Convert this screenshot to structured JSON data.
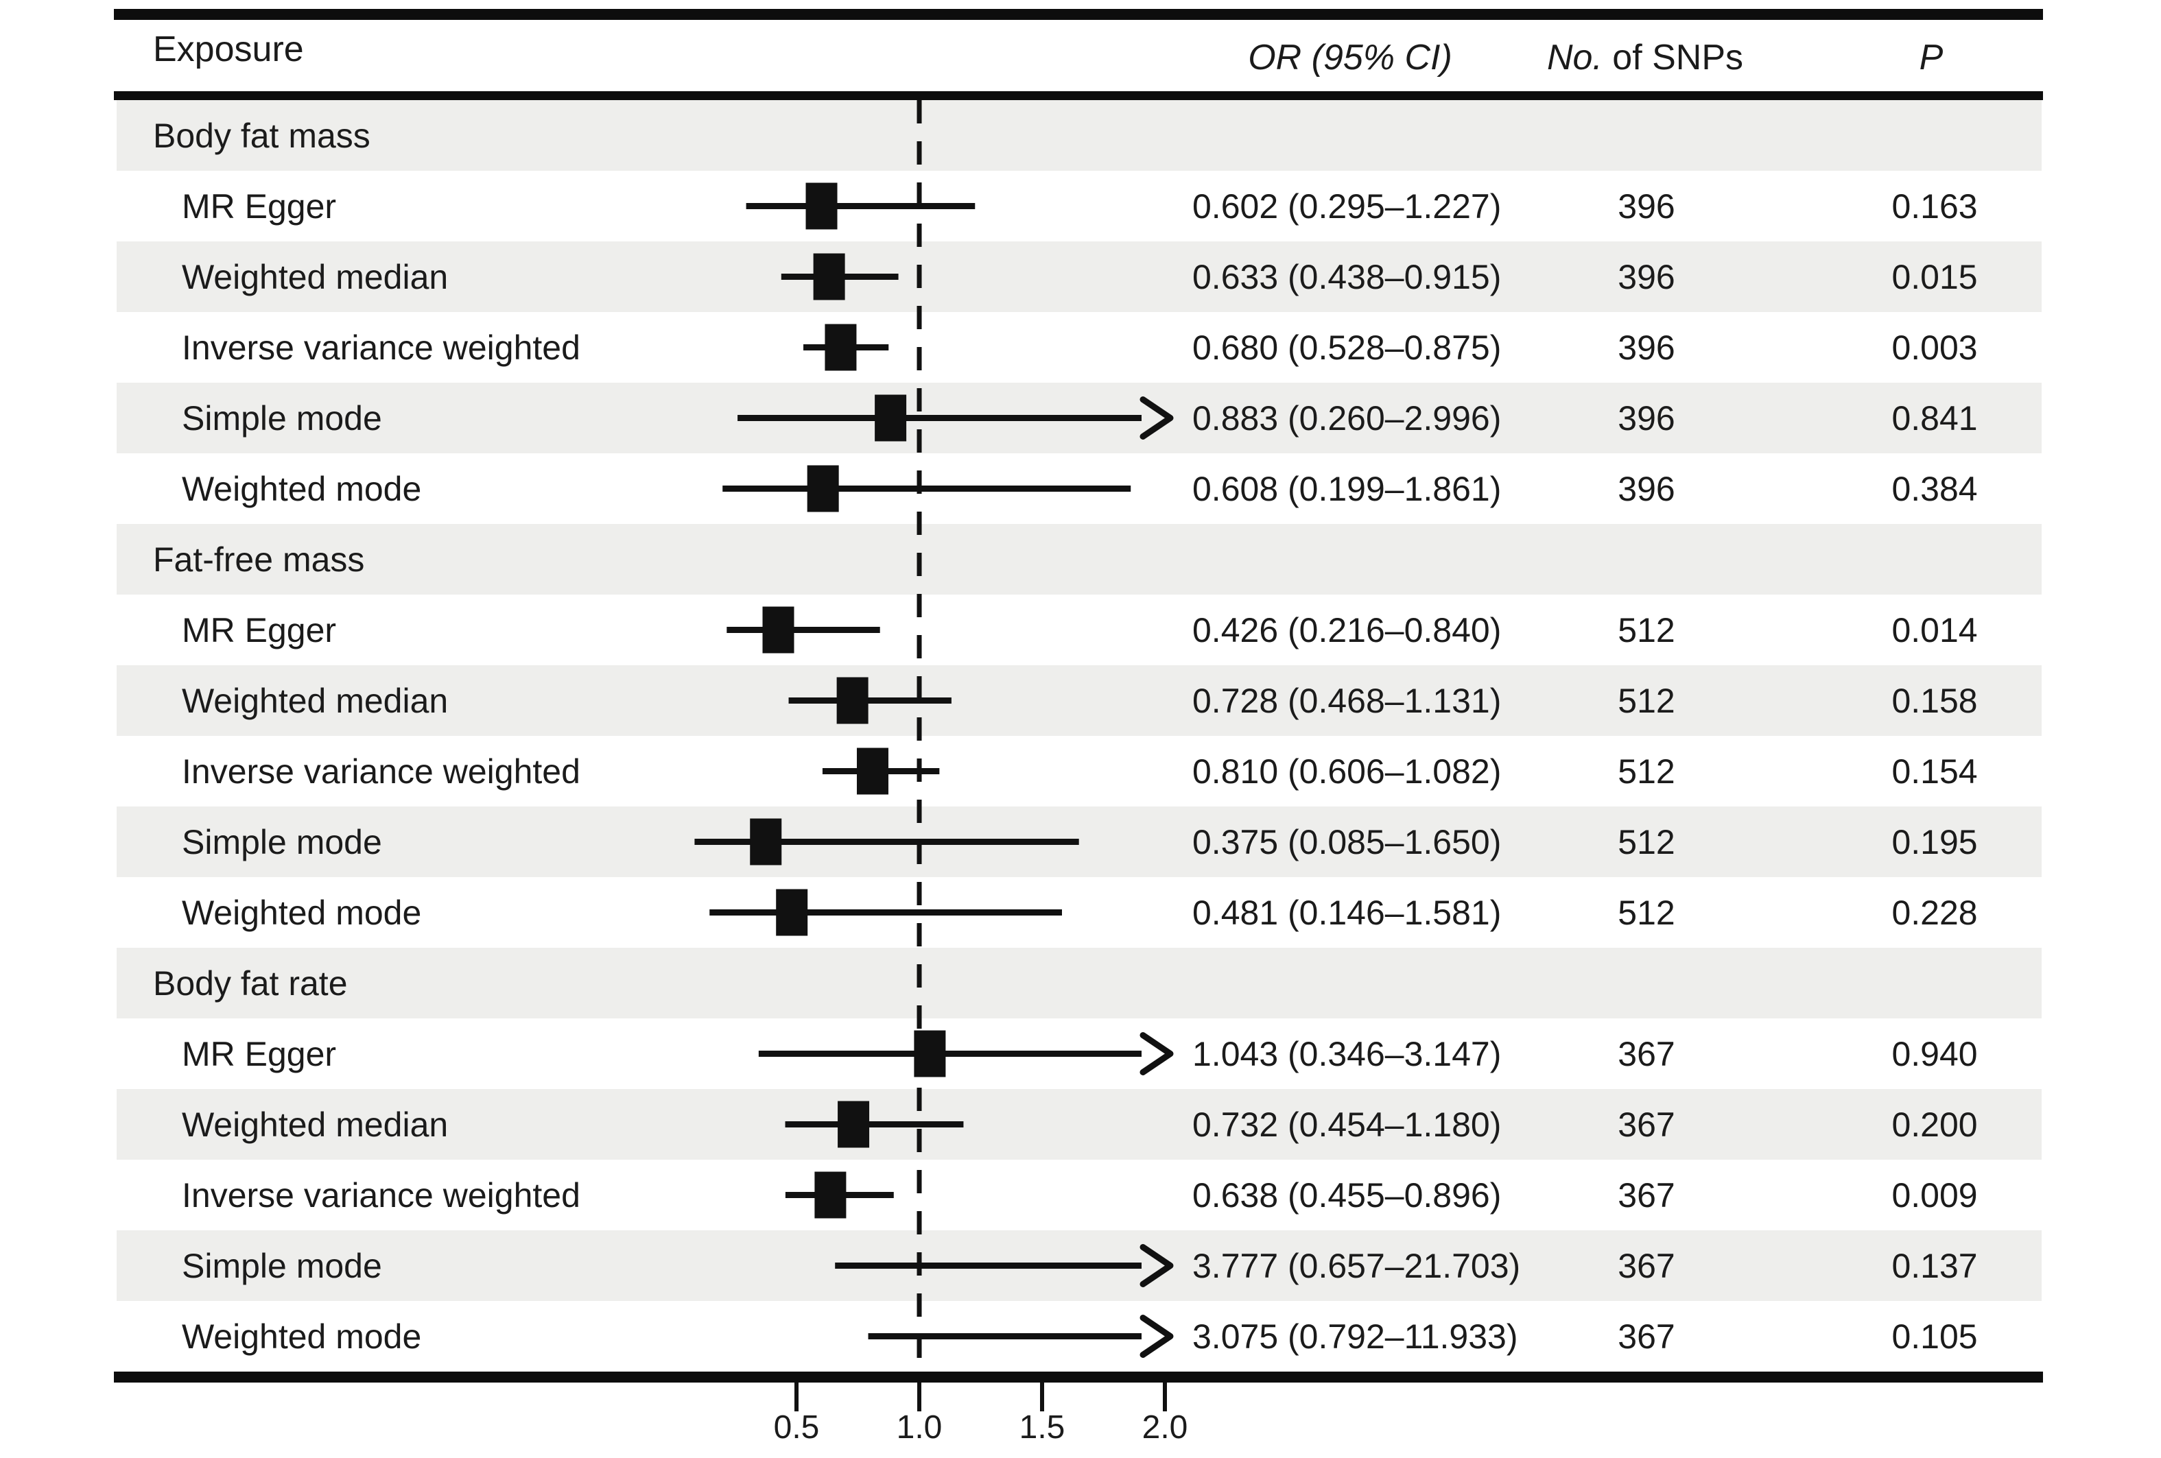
{
  "header": {
    "exposure": "Exposure",
    "or_ci": "OR (95% CI)",
    "no_prefix": "No.",
    "no_suffix": " of SNPs",
    "p": "P"
  },
  "colors": {
    "ink": "#111111",
    "band": "#eeeeec",
    "rule": "#0d0d0d"
  },
  "chart_data": {
    "type": "forest",
    "columns": [
      "Exposure",
      "OR (95% CI)",
      "No. of SNPs",
      "P"
    ],
    "x_axis": {
      "ticks": [
        0.5,
        1.0,
        1.5,
        2.0
      ],
      "tick_labels": [
        "0.5",
        "1.0",
        "1.5",
        "2.0"
      ],
      "reference_line": 1.0,
      "clip_high": 2.05,
      "scale": "linear"
    },
    "groups": [
      {
        "exposure": "Body fat mass",
        "methods": [
          {
            "method": "MR Egger",
            "or": 0.602,
            "ci_low": 0.295,
            "ci_high": 1.227,
            "or_text": "0.602 (0.295–1.227)",
            "snps": "396",
            "p": "0.163"
          },
          {
            "method": "Weighted median",
            "or": 0.633,
            "ci_low": 0.438,
            "ci_high": 0.915,
            "or_text": "0.633 (0.438–0.915)",
            "snps": "396",
            "p": "0.015"
          },
          {
            "method": "Inverse variance weighted",
            "or": 0.68,
            "ci_low": 0.528,
            "ci_high": 0.875,
            "or_text": "0.680 (0.528–0.875)",
            "snps": "396",
            "p": "0.003"
          },
          {
            "method": "Simple mode",
            "or": 0.883,
            "ci_low": 0.26,
            "ci_high": 2.996,
            "or_text": "0.883 (0.260–2.996)",
            "snps": "396",
            "p": "0.841"
          },
          {
            "method": "Weighted mode",
            "or": 0.608,
            "ci_low": 0.199,
            "ci_high": 1.861,
            "or_text": "0.608 (0.199–1.861)",
            "snps": "396",
            "p": "0.384"
          }
        ]
      },
      {
        "exposure": "Fat-free mass",
        "methods": [
          {
            "method": "MR Egger",
            "or": 0.426,
            "ci_low": 0.216,
            "ci_high": 0.84,
            "or_text": "0.426 (0.216–0.840)",
            "snps": "512",
            "p": "0.014"
          },
          {
            "method": "Weighted median",
            "or": 0.728,
            "ci_low": 0.468,
            "ci_high": 1.131,
            "or_text": "0.728 (0.468–1.131)",
            "snps": "512",
            "p": "0.158"
          },
          {
            "method": "Inverse variance weighted",
            "or": 0.81,
            "ci_low": 0.606,
            "ci_high": 1.082,
            "or_text": "0.810 (0.606–1.082)",
            "snps": "512",
            "p": "0.154"
          },
          {
            "method": "Simple mode",
            "or": 0.375,
            "ci_low": 0.085,
            "ci_high": 1.65,
            "or_text": "0.375 (0.085–1.650)",
            "snps": "512",
            "p": "0.195"
          },
          {
            "method": "Weighted mode",
            "or": 0.481,
            "ci_low": 0.146,
            "ci_high": 1.581,
            "or_text": "0.481 (0.146–1.581)",
            "snps": "512",
            "p": "0.228"
          }
        ]
      },
      {
        "exposure": "Body fat rate",
        "methods": [
          {
            "method": "MR Egger",
            "or": 1.043,
            "ci_low": 0.346,
            "ci_high": 3.147,
            "or_text": "1.043 (0.346–3.147)",
            "snps": "367",
            "p": "0.940"
          },
          {
            "method": "Weighted median",
            "or": 0.732,
            "ci_low": 0.454,
            "ci_high": 1.18,
            "or_text": "0.732 (0.454–1.180)",
            "snps": "367",
            "p": "0.200"
          },
          {
            "method": "Inverse variance weighted",
            "or": 0.638,
            "ci_low": 0.455,
            "ci_high": 0.896,
            "or_text": "0.638 (0.455–0.896)",
            "snps": "367",
            "p": "0.009"
          },
          {
            "method": "Simple mode",
            "or": 3.777,
            "ci_low": 0.657,
            "ci_high": 21.703,
            "or_text": "3.777 (0.657–21.703)",
            "snps": "367",
            "p": "0.137"
          },
          {
            "method": "Weighted mode",
            "or": 3.075,
            "ci_low": 0.792,
            "ci_high": 11.933,
            "or_text": "3.075 (0.792–11.933)",
            "snps": "367",
            "p": "0.105"
          }
        ]
      }
    ]
  }
}
